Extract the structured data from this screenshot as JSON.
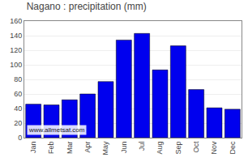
{
  "chart_data": {
    "type": "bar",
    "title": "Nagano : precipitation (mm)",
    "categories": [
      "Jan",
      "Feb",
      "Mar",
      "Apr",
      "May",
      "Jun",
      "Jul",
      "Aug",
      "Sep",
      "Oct",
      "Nov",
      "Dec"
    ],
    "values": [
      46,
      45,
      52,
      60,
      77,
      134,
      143,
      93,
      126,
      66,
      41,
      39
    ],
    "color": "#0000ee",
    "ylim": [
      0,
      160
    ],
    "yticks": [
      0,
      20,
      40,
      60,
      80,
      100,
      120,
      140,
      160
    ],
    "grid": true,
    "annotations": [
      "www.allmetsat.com"
    ]
  }
}
